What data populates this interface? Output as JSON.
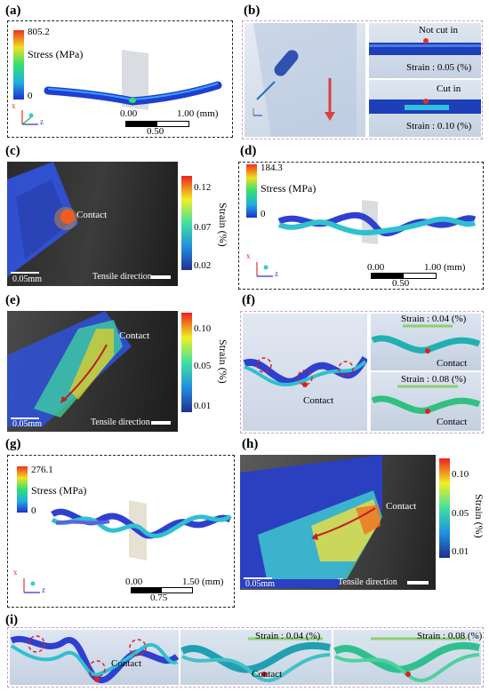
{
  "panels": {
    "a": {
      "label": "(a)",
      "cb_max": "805.2",
      "cb_min": "0",
      "cb_title": "Stress (MPa)",
      "scale_left": "0.00",
      "scale_right": "1.00 (mm)",
      "scale_mid": "0.50"
    },
    "b": {
      "label": "(b)",
      "not_cut": "Not cut in",
      "strain1": "Strain : 0.05 (%)",
      "cut": "Cut in",
      "strain2": "Strain : 0.10 (%)"
    },
    "c": {
      "label": "(c)",
      "contact": "Contact",
      "scalebar": "0.05mm",
      "direction": "Tensile direction",
      "ticks": [
        "0.12",
        "0.07",
        "0.02"
      ],
      "cb_title": "Strain (%)"
    },
    "d": {
      "label": "(d)",
      "cb_max": "184.3",
      "cb_min": "0",
      "cb_title": "Stress (MPa)",
      "scale_left": "0.00",
      "scale_right": "1.00 (mm)",
      "scale_mid": "0.50"
    },
    "e": {
      "label": "(e)",
      "contact": "Contact",
      "scalebar": "0.05mm",
      "direction": "Tensile direction",
      "ticks": [
        "0.10",
        "0.05",
        "0.01"
      ],
      "cb_title": "Strain (%)"
    },
    "f": {
      "label": "(f)",
      "contact_left": "Contact",
      "strain1": "Strain : 0.04 (%)",
      "contact1": "Contact",
      "strain2": "Strain : 0.08 (%)",
      "contact2": "Contact"
    },
    "g": {
      "label": "(g)",
      "cb_max": "276.1",
      "cb_min": "0",
      "cb_title": "Stress (MPa)",
      "scale_left": "0.00",
      "scale_right": "1.50 (mm)",
      "scale_mid": "0.75"
    },
    "h": {
      "label": "(h)",
      "contact": "Contact",
      "scalebar": "0.05mm",
      "direction": "Tensile direction",
      "ticks": [
        "0.10",
        "0.05",
        "0.01"
      ],
      "cb_title": "Strain (%)"
    },
    "i": {
      "label": "(i)",
      "contact1": "Contact",
      "contact2": "Contact",
      "strain1": "Strain : 0.04 (%)",
      "strain2": "Strain : 0.08 (%)"
    }
  },
  "axes": {
    "x": "x",
    "y": "y",
    "z": "z"
  },
  "colors": {
    "stress_scale": [
      "#1f2fd0",
      "#20b0e0",
      "#30e070",
      "#f0e020",
      "#f03020"
    ],
    "strain_scale": [
      "#20308f",
      "#2090e0",
      "#40e0a0",
      "#f0f020",
      "#f02020"
    ]
  }
}
